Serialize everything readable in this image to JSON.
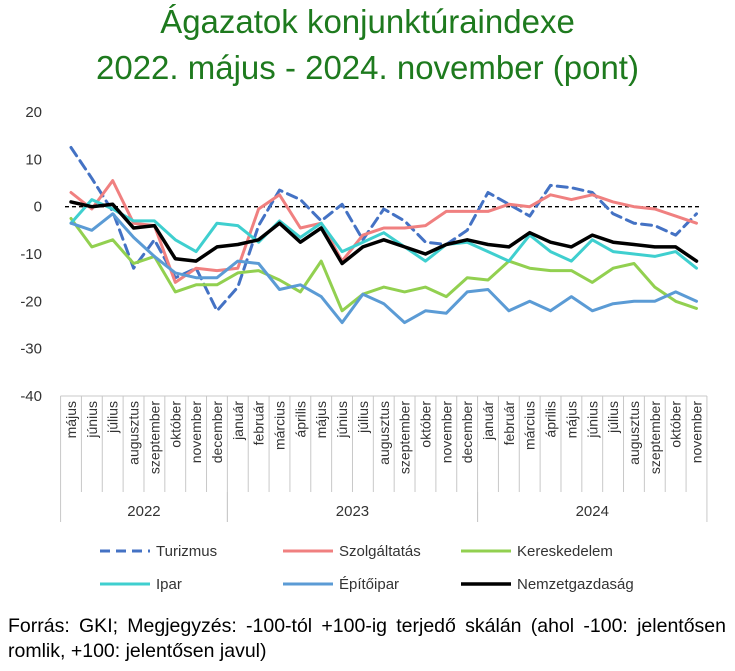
{
  "title_line1": "Ágazatok konjunktúraindexe",
  "title_line2": "2022. május - 2024. november (pont)",
  "source": "Forrás: GKI; Megjegyzés: -100-tól +100-ig terjedő skálán (ahol -100: jelentősen romlik, +100: jelentősen javul)",
  "colors": {
    "title": "#1e7a1e",
    "turizmus": "#4472c4",
    "szolgaltatas": "#f08080",
    "kereskedelem": "#92d050",
    "ipar": "#3fcfcf",
    "epitoipar": "#5b9bd5",
    "nemzetgazdasag": "#000000"
  },
  "chart_data": {
    "type": "line",
    "ylim": [
      -40,
      20
    ],
    "yticks": [
      20,
      10,
      0,
      -10,
      -20,
      -30,
      -40
    ],
    "categories": [
      "május",
      "június",
      "július",
      "augusztus",
      "szeptember",
      "október",
      "november",
      "december",
      "január",
      "február",
      "március",
      "április",
      "május",
      "június",
      "július",
      "augusztus",
      "szeptember",
      "október",
      "november",
      "december",
      "január",
      "február",
      "március",
      "április",
      "május",
      "június",
      "július",
      "augusztus",
      "szeptember",
      "október",
      "november"
    ],
    "years": [
      {
        "label": "2022",
        "from": 0,
        "to": 7
      },
      {
        "label": "2023",
        "from": 8,
        "to": 19
      },
      {
        "label": "2024",
        "from": 20,
        "to": 30
      }
    ],
    "reference_line": 0,
    "series": [
      {
        "key": "turizmus",
        "name": "Turizmus",
        "dashed": true,
        "width": 3,
        "values": [
          12.5,
          6,
          -1,
          -13,
          -7,
          -15,
          -13,
          -22,
          -17,
          -4,
          3.5,
          1.5,
          -3,
          0.5,
          -7,
          -0.5,
          -3,
          -7.5,
          -8,
          -5,
          3,
          0.5,
          -2,
          4.5,
          4,
          3,
          -1.5,
          -3.5,
          -4,
          -6,
          -1.5
        ]
      },
      {
        "key": "szolgaltatas",
        "name": "Szolgáltatás",
        "dashed": false,
        "width": 3,
        "values": [
          3,
          -0.5,
          5.5,
          -3.5,
          -4,
          -16,
          -13,
          -13.5,
          -13,
          -0.5,
          2.5,
          -4.5,
          -3.5,
          -11.5,
          -6,
          -4.5,
          -4.5,
          -4,
          -1,
          -1,
          -1,
          0.5,
          0,
          2.5,
          1.5,
          2.5,
          1,
          0,
          -0.5,
          -2,
          -3.5
        ]
      },
      {
        "key": "kereskedelem",
        "name": "Kereskedelem",
        "dashed": false,
        "width": 3,
        "values": [
          -2.5,
          -8.5,
          -7,
          -12,
          -10.5,
          -18,
          -16.5,
          -16.5,
          -14,
          -13.5,
          -15.5,
          -18,
          -11.5,
          -22,
          -18.5,
          -17,
          -18,
          -17,
          -19,
          -15,
          -15.5,
          -11.5,
          -13,
          -13.5,
          -13.5,
          -16,
          -13,
          -12,
          -17,
          -20,
          -21.5
        ]
      },
      {
        "key": "ipar",
        "name": "Ipar",
        "dashed": false,
        "width": 3,
        "values": [
          -3.5,
          1.5,
          -0.5,
          -3,
          -3,
          -7,
          -9.5,
          -3.5,
          -4,
          -7.5,
          -3,
          -6.5,
          -3.5,
          -9.5,
          -7.5,
          -5.5,
          -8.5,
          -11.5,
          -8,
          -7.5,
          -9.5,
          -11.5,
          -6,
          -9.5,
          -11.5,
          -7,
          -9.5,
          -10,
          -10.5,
          -9.5,
          -13
        ]
      },
      {
        "key": "epitoipar",
        "name": "Építőipar",
        "dashed": false,
        "width": 3,
        "values": [
          -3.5,
          -5,
          -1.5,
          -6.5,
          -10.5,
          -14,
          -15,
          -15,
          -11.5,
          -12,
          -17.5,
          -16.5,
          -19,
          -24.5,
          -18.5,
          -20.5,
          -24.5,
          -22,
          -22.5,
          -18,
          -17.5,
          -22,
          -20,
          -22,
          -19,
          -22,
          -20.5,
          -20,
          -20,
          -18,
          -20
        ]
      },
      {
        "key": "nemzetgazdasag",
        "name": "Nemzetgazdaság",
        "dashed": false,
        "width": 3.5,
        "values": [
          1,
          0,
          0.5,
          -4.5,
          -4,
          -11,
          -11.5,
          -8.5,
          -8,
          -7,
          -3.5,
          -7.5,
          -4.5,
          -12,
          -8.5,
          -7,
          -8.5,
          -10,
          -8,
          -7,
          -8,
          -8.5,
          -5.5,
          -7.5,
          -8.5,
          -6,
          -7.5,
          -8,
          -8.5,
          -8.5,
          -11.5
        ]
      }
    ]
  }
}
